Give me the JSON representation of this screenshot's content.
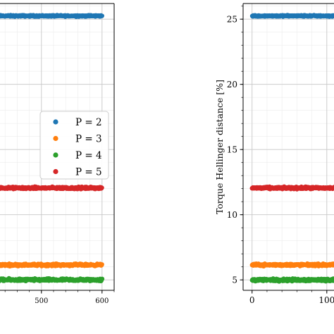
{
  "chart_data": [
    {
      "type": "scatter",
      "title": "",
      "xlabel": "",
      "ylabel": "",
      "xlim": [
        420,
        620
      ],
      "xticks": [
        500,
        600
      ],
      "xtick_labels": [
        "500",
        "600"
      ],
      "ylim": [
        4.2,
        26.2
      ],
      "grid": true,
      "legend_placement": "center-right",
      "series": [
        {
          "name": "P = 2",
          "color": "#1f77b4",
          "x_range": [
            430,
            600
          ],
          "y_mean": 25.25,
          "y_spread": 0.08
        },
        {
          "name": "P = 3",
          "color": "#ff7f0e",
          "x_range": [
            430,
            600
          ],
          "y_mean": 6.15,
          "y_spread": 0.12
        },
        {
          "name": "P = 4",
          "color": "#2ca02c",
          "x_range": [
            430,
            600
          ],
          "y_mean": 5.0,
          "y_spread": 0.14
        },
        {
          "name": "P = 5",
          "color": "#d62728",
          "x_range": [
            430,
            600
          ],
          "y_mean": 12.05,
          "y_spread": 0.12
        }
      ]
    },
    {
      "type": "scatter",
      "title": "",
      "xlabel": "",
      "ylabel": "Torque Hellinger distance [%]",
      "xlim": [
        -12,
        120
      ],
      "xticks": [
        0,
        100
      ],
      "xtick_labels": [
        "0",
        "100"
      ],
      "ylim": [
        4.2,
        26.2
      ],
      "yticks": [
        5,
        10,
        15,
        20,
        25
      ],
      "ytick_labels": [
        "5",
        "10",
        "15",
        "20",
        "25"
      ],
      "grid": true,
      "series": [
        {
          "name": "P = 2",
          "color": "#1f77b4",
          "x_range": [
            0,
            120
          ],
          "y_mean": 25.25,
          "y_spread": 0.08
        },
        {
          "name": "P = 3",
          "color": "#ff7f0e",
          "x_range": [
            0,
            120
          ],
          "y_mean": 6.15,
          "y_spread": 0.12
        },
        {
          "name": "P = 4",
          "color": "#2ca02c",
          "x_range": [
            0,
            120
          ],
          "y_mean": 5.0,
          "y_spread": 0.14
        },
        {
          "name": "P = 5",
          "color": "#d62728",
          "x_range": [
            0,
            120
          ],
          "y_mean": 12.05,
          "y_spread": 0.12
        }
      ]
    }
  ]
}
